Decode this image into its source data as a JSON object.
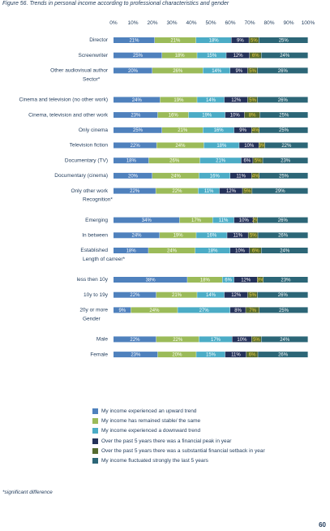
{
  "title": "Figure 56. Trends in personal income according to professional characteristics and gender",
  "footnote": "*significant difference",
  "page_number": "60",
  "colors": [
    "#4f81bd",
    "#9bbb59",
    "#4bacc6",
    "#24325a",
    "#556b2f",
    "#2c6677"
  ],
  "chart_data": {
    "type": "bar",
    "orientation": "horizontal",
    "stacked": true,
    "xlim": [
      0,
      100
    ],
    "x_ticks": [
      "0%",
      "10%",
      "20%",
      "30%",
      "40%",
      "50%",
      "60%",
      "70%",
      "80%",
      "90%",
      "100%"
    ],
    "grid": false,
    "legend_position": "bottom",
    "series": [
      {
        "name": "My income experienced an upward trend",
        "color": "#4f81bd"
      },
      {
        "name": "My income has remained stable/ the same",
        "color": "#9bbb59"
      },
      {
        "name": "My income experienced a downward trend",
        "color": "#4bacc6"
      },
      {
        "name": "Over the past 5 years there was a financial peak in year",
        "color": "#24325a"
      },
      {
        "name": "Over the past 5 years there was a substantial financial setback in year",
        "color": "#556b2f"
      },
      {
        "name": "My income fluctuated strongly the last 5 years",
        "color": "#2c6677"
      }
    ],
    "groups": [
      {
        "title": "",
        "rows": [
          {
            "label": "Director",
            "values": [
              21,
              21,
              18,
              9,
              5,
              25
            ],
            "labels": [
              "21%",
              "21%",
              "18%",
              "9%",
              "5%",
              "25%"
            ]
          },
          {
            "label": "Screenwriter",
            "values": [
              25,
              18,
              15,
              12,
              6,
              24
            ],
            "labels": [
              "25%",
              "18%",
              "15%",
              "12%",
              "6%",
              "24%"
            ]
          },
          {
            "label": "Other audiovisual author",
            "values": [
              20,
              26,
              14,
              9,
              5,
              26
            ],
            "labels": [
              "20%",
              "26%",
              "14%",
              "9%",
              "5%",
              "26%"
            ]
          }
        ]
      },
      {
        "title": "Sector*",
        "rows": [
          {
            "label": "Cinema and television (no other work)",
            "values": [
              24,
              19,
              14,
              12,
              5,
              26
            ],
            "labels": [
              "24%",
              "19%",
              "14%",
              "12%",
              "5%",
              "26%"
            ]
          },
          {
            "label": "Cinema, television and other work",
            "values": [
              23,
              16,
              19,
              10,
              8,
              25
            ],
            "labels": [
              "23%",
              "16%",
              "19%",
              "10%",
              "8%",
              "25%"
            ]
          },
          {
            "label": "Only cinema",
            "values": [
              25,
              21,
              16,
              9,
              4,
              25
            ],
            "labels": [
              "25%",
              "21%",
              "16%",
              "9%",
              "4%",
              "25%"
            ]
          },
          {
            "label": "Television fiction",
            "values": [
              22,
              24,
              18,
              10,
              3,
              22
            ],
            "labels": [
              "22%",
              "24%",
              "18%",
              "10%",
              "3%",
              "22%"
            ]
          },
          {
            "label": "Documentary (TV)",
            "values": [
              18,
              26,
              21,
              6,
              5,
              23
            ],
            "labels": [
              "18%",
              "26%",
              "21%",
              "6%",
              "5%",
              "23%"
            ]
          },
          {
            "label": "Documentary (cinema)",
            "values": [
              20,
              24,
              16,
              11,
              4,
              25
            ],
            "labels": [
              "20%",
              "24%",
              "16%",
              "11%",
              "4%",
              "25%"
            ]
          },
          {
            "label": "Only other work",
            "values": [
              22,
              22,
              11,
              12,
              5,
              29
            ],
            "labels": [
              "22%",
              "22%",
              "11%",
              "12%",
              "5%",
              "29%"
            ]
          }
        ]
      },
      {
        "title": "Recognition*",
        "rows": [
          {
            "label": "Emerging",
            "values": [
              34,
              17,
              11,
              10,
              2,
              26
            ],
            "labels": [
              "34%",
              "17%",
              "11%",
              "10%",
              "2%",
              "26%"
            ]
          },
          {
            "label": "In between",
            "values": [
              24,
              19,
              16,
              11,
              5,
              26
            ],
            "labels": [
              "24%",
              "19%",
              "16%",
              "11%",
              "5%",
              "26%"
            ]
          },
          {
            "label": "Established",
            "values": [
              18,
              24,
              18,
              10,
              6,
              24
            ],
            "labels": [
              "18%",
              "24%",
              "18%",
              "10%",
              "6%",
              "24%"
            ]
          }
        ]
      },
      {
        "title": "Length of carreer*",
        "rows": [
          {
            "label": "less then 10y",
            "values": [
              38,
              18,
              6,
              12,
              3,
              23
            ],
            "labels": [
              "38%",
              "18%",
              "6%",
              "12%",
              "3%",
              "23%"
            ]
          },
          {
            "label": "10y to 19y",
            "values": [
              22,
              21,
              14,
              12,
              5,
              26
            ],
            "labels": [
              "22%",
              "21%",
              "14%",
              "12%",
              "5%",
              "26%"
            ]
          },
          {
            "label": "20y or more",
            "values": [
              9,
              24,
              27,
              8,
              7,
              25
            ],
            "labels": [
              "9%",
              "24%",
              "27%",
              "8%",
              "7%",
              "25%"
            ]
          }
        ]
      },
      {
        "title": "Gender",
        "rows": [
          {
            "label": "Male",
            "values": [
              22,
              22,
              17,
              10,
              5,
              24
            ],
            "labels": [
              "22%",
              "22%",
              "17%",
              "10%",
              "5%",
              "24%"
            ]
          },
          {
            "label": "Female",
            "values": [
              23,
              20,
              15,
              11,
              6,
              26
            ],
            "labels": [
              "23%",
              "20%",
              "15%",
              "11%",
              "6%",
              "26%"
            ]
          }
        ]
      }
    ]
  }
}
